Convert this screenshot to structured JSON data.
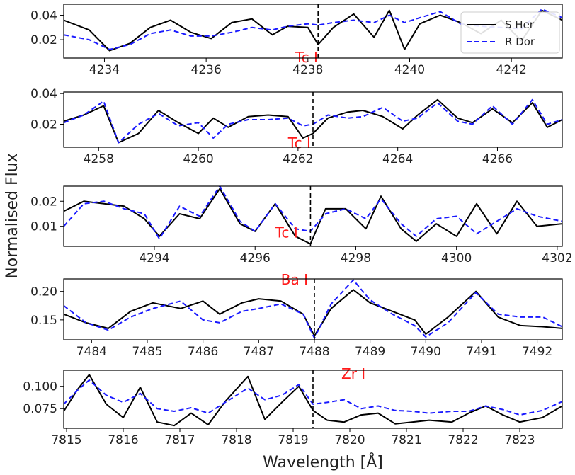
{
  "chart_data": [
    {
      "type": "line",
      "xlim": [
        4233.2,
        4243.0
      ],
      "ylim": [
        0.005,
        0.049
      ],
      "xticks": [
        "4234",
        "4236",
        "4238",
        "4240",
        "4242"
      ],
      "yticks": [
        "0.02",
        "0.04"
      ],
      "marker_x": 4238.2,
      "annotation": {
        "text": "Tc I",
        "x": 4237.75,
        "y": 0.0015
      },
      "legend": {
        "position": "top-right",
        "entries": [
          "S Her",
          "R Dor"
        ]
      },
      "series": [
        {
          "name": "S Her",
          "x": [
            4233.2,
            4233.7,
            4234.1,
            4234.5,
            4234.9,
            4235.3,
            4235.7,
            4236.1,
            4236.5,
            4236.9,
            4237.3,
            4237.6,
            4238.0,
            4238.2,
            4238.5,
            4238.9,
            4239.3,
            4239.6,
            4239.9,
            4240.2,
            4240.6,
            4241.0,
            4241.4,
            4241.8,
            4242.2,
            4242.6,
            4243.0
          ],
          "y": [
            0.036,
            0.028,
            0.011,
            0.017,
            0.03,
            0.036,
            0.026,
            0.021,
            0.034,
            0.037,
            0.024,
            0.031,
            0.03,
            0.016,
            0.03,
            0.041,
            0.022,
            0.044,
            0.012,
            0.033,
            0.04,
            0.034,
            0.025,
            0.036,
            0.019,
            0.044,
            0.036
          ]
        },
        {
          "name": "R Dor",
          "x": [
            4233.2,
            4233.7,
            4234.1,
            4234.5,
            4234.9,
            4235.3,
            4235.7,
            4236.1,
            4236.5,
            4236.9,
            4237.3,
            4237.6,
            4238.0,
            4238.2,
            4238.5,
            4238.9,
            4239.3,
            4239.6,
            4239.9,
            4240.2,
            4240.6,
            4241.0,
            4241.4,
            4241.8,
            4242.2,
            4242.6,
            4243.0
          ],
          "y": [
            0.024,
            0.02,
            0.012,
            0.016,
            0.025,
            0.028,
            0.023,
            0.023,
            0.026,
            0.03,
            0.028,
            0.031,
            0.033,
            0.032,
            0.034,
            0.036,
            0.034,
            0.04,
            0.034,
            0.038,
            0.043,
            0.033,
            0.031,
            0.03,
            0.029,
            0.045,
            0.038
          ]
        }
      ]
    },
    {
      "type": "line",
      "xlim": [
        4257.3,
        4267.3
      ],
      "ylim": [
        0.005,
        0.041
      ],
      "xticks": [
        "4258",
        "4260",
        "4262",
        "4264",
        "4266"
      ],
      "yticks": [
        "0.02",
        "0.04"
      ],
      "marker_x": 4262.3,
      "annotation": {
        "text": "Tc I",
        "x": 4261.8,
        "y": 0.0045
      },
      "series": [
        {
          "name": "S Her",
          "x": [
            4257.3,
            4257.7,
            4258.1,
            4258.4,
            4258.8,
            4259.2,
            4259.6,
            4260.0,
            4260.3,
            4260.6,
            4261.0,
            4261.4,
            4261.8,
            4262.1,
            4262.3,
            4262.6,
            4263.0,
            4263.3,
            4263.7,
            4264.1,
            4264.4,
            4264.8,
            4265.2,
            4265.5,
            4265.9,
            4266.3,
            4266.7,
            4267.0,
            4267.3
          ],
          "y": [
            0.022,
            0.026,
            0.032,
            0.008,
            0.014,
            0.029,
            0.021,
            0.014,
            0.024,
            0.018,
            0.025,
            0.026,
            0.025,
            0.011,
            0.014,
            0.024,
            0.028,
            0.029,
            0.025,
            0.017,
            0.026,
            0.036,
            0.024,
            0.021,
            0.03,
            0.021,
            0.034,
            0.018,
            0.023
          ]
        },
        {
          "name": "R Dor",
          "x": [
            4257.3,
            4257.7,
            4258.1,
            4258.4,
            4258.8,
            4259.2,
            4259.6,
            4260.0,
            4260.3,
            4260.6,
            4261.0,
            4261.4,
            4261.8,
            4262.1,
            4262.3,
            4262.6,
            4263.0,
            4263.3,
            4263.7,
            4264.1,
            4264.4,
            4264.8,
            4265.2,
            4265.5,
            4265.9,
            4266.3,
            4266.7,
            4267.0,
            4267.3
          ],
          "y": [
            0.021,
            0.026,
            0.035,
            0.008,
            0.02,
            0.027,
            0.019,
            0.021,
            0.011,
            0.02,
            0.023,
            0.023,
            0.024,
            0.019,
            0.02,
            0.026,
            0.024,
            0.025,
            0.031,
            0.022,
            0.024,
            0.034,
            0.022,
            0.02,
            0.032,
            0.02,
            0.036,
            0.02,
            0.023
          ]
        }
      ]
    },
    {
      "type": "line",
      "xlim": [
        4292.2,
        4302.1
      ],
      "ylim": [
        0.002,
        0.026
      ],
      "xticks": [
        "4294",
        "4296",
        "4298",
        "4300",
        "4302"
      ],
      "yticks": [
        "0.01",
        "0.02"
      ],
      "marker_x": 4297.1,
      "annotation": {
        "text": "Tc I",
        "x": 4296.4,
        "y": 0.0055
      },
      "series": [
        {
          "name": "S Her",
          "x": [
            4292.2,
            4292.6,
            4293.0,
            4293.4,
            4293.8,
            4294.1,
            4294.5,
            4294.9,
            4295.3,
            4295.7,
            4296.0,
            4296.4,
            4296.8,
            4297.1,
            4297.4,
            4297.8,
            4298.2,
            4298.5,
            4298.9,
            4299.2,
            4299.6,
            4300.0,
            4300.4,
            4300.8,
            4301.2,
            4301.6,
            4302.1
          ],
          "y": [
            0.016,
            0.02,
            0.019,
            0.018,
            0.013,
            0.006,
            0.015,
            0.013,
            0.025,
            0.011,
            0.008,
            0.019,
            0.006,
            0.003,
            0.017,
            0.017,
            0.009,
            0.022,
            0.009,
            0.004,
            0.011,
            0.006,
            0.019,
            0.007,
            0.02,
            0.01,
            0.011
          ]
        },
        {
          "name": "R Dor",
          "x": [
            4292.2,
            4292.6,
            4293.0,
            4293.4,
            4293.8,
            4294.1,
            4294.5,
            4294.9,
            4295.3,
            4295.7,
            4296.0,
            4296.4,
            4296.8,
            4297.1,
            4297.4,
            4297.8,
            4298.2,
            4298.5,
            4298.9,
            4299.2,
            4299.6,
            4300.0,
            4300.4,
            4300.8,
            4301.2,
            4301.6,
            4302.1
          ],
          "y": [
            0.01,
            0.019,
            0.02,
            0.017,
            0.015,
            0.005,
            0.018,
            0.014,
            0.026,
            0.012,
            0.008,
            0.019,
            0.009,
            0.008,
            0.015,
            0.017,
            0.013,
            0.021,
            0.011,
            0.006,
            0.013,
            0.014,
            0.007,
            0.012,
            0.017,
            0.014,
            0.012
          ]
        }
      ]
    },
    {
      "type": "line",
      "xlim": [
        7483.5,
        7492.45
      ],
      "ylim": [
        0.115,
        0.222
      ],
      "xticks": [
        "7484",
        "7485",
        "7486",
        "7487",
        "7488",
        "7489",
        "7490",
        "7491",
        "7492"
      ],
      "yticks": [
        "0.15",
        "0.20"
      ],
      "marker_x": 7488.0,
      "annotation": {
        "text": "Ba I",
        "x": 7487.4,
        "y": 0.212
      },
      "series": [
        {
          "name": "S Her",
          "x": [
            7483.5,
            7483.9,
            7484.3,
            7484.7,
            7485.1,
            7485.6,
            7486.0,
            7486.3,
            7486.7,
            7487.0,
            7487.4,
            7487.8,
            7488.0,
            7488.3,
            7488.7,
            7489.0,
            7489.4,
            7489.8,
            7490.0,
            7490.4,
            7490.9,
            7491.3,
            7491.7,
            7492.1,
            7492.45
          ],
          "y": [
            0.16,
            0.145,
            0.135,
            0.165,
            0.18,
            0.17,
            0.183,
            0.16,
            0.18,
            0.187,
            0.183,
            0.16,
            0.122,
            0.17,
            0.203,
            0.18,
            0.165,
            0.15,
            0.125,
            0.155,
            0.2,
            0.155,
            0.14,
            0.138,
            0.135
          ]
        },
        {
          "name": "R Dor",
          "x": [
            7483.5,
            7483.9,
            7484.3,
            7484.7,
            7485.1,
            7485.6,
            7486.0,
            7486.3,
            7486.7,
            7487.0,
            7487.4,
            7487.8,
            7488.0,
            7488.3,
            7488.7,
            7489.0,
            7489.4,
            7489.8,
            7490.0,
            7490.4,
            7490.9,
            7491.3,
            7491.7,
            7492.1,
            7492.45
          ],
          "y": [
            0.175,
            0.145,
            0.132,
            0.155,
            0.17,
            0.183,
            0.15,
            0.145,
            0.165,
            0.17,
            0.178,
            0.16,
            0.118,
            0.178,
            0.22,
            0.185,
            0.16,
            0.14,
            0.12,
            0.145,
            0.198,
            0.16,
            0.155,
            0.155,
            0.138
          ]
        }
      ]
    },
    {
      "type": "line",
      "xlim": [
        7814.95,
        7823.75
      ],
      "ylim": [
        0.053,
        0.118
      ],
      "xticks": [
        "7815",
        "7816",
        "7817",
        "7818",
        "7819",
        "7820",
        "7821",
        "7822",
        "7823"
      ],
      "yticks": [
        "0.075",
        "0.100"
      ],
      "marker_x": 7819.35,
      "annotation": {
        "text": "Zr I",
        "x": 7819.85,
        "y": 0.1085
      },
      "series": [
        {
          "name": "S Her",
          "x": [
            7814.95,
            7815.2,
            7815.4,
            7815.7,
            7816.0,
            7816.3,
            7816.6,
            7816.9,
            7817.2,
            7817.5,
            7817.8,
            7818.2,
            7818.5,
            7818.8,
            7819.1,
            7819.35,
            7819.6,
            7819.9,
            7820.2,
            7820.5,
            7820.8,
            7821.1,
            7821.4,
            7821.8,
            7822.1,
            7822.4,
            7822.7,
            7823.0,
            7823.4,
            7823.75
          ],
          "y": [
            0.072,
            0.097,
            0.113,
            0.08,
            0.065,
            0.099,
            0.06,
            0.056,
            0.07,
            0.057,
            0.083,
            0.111,
            0.063,
            0.082,
            0.1,
            0.073,
            0.062,
            0.06,
            0.068,
            0.07,
            0.058,
            0.06,
            0.062,
            0.06,
            0.07,
            0.078,
            0.068,
            0.06,
            0.065,
            0.078
          ]
        },
        {
          "name": "R Dor",
          "x": [
            7814.95,
            7815.2,
            7815.4,
            7815.7,
            7816.0,
            7816.3,
            7816.6,
            7816.9,
            7817.2,
            7817.5,
            7817.8,
            7818.2,
            7818.5,
            7818.8,
            7819.1,
            7819.35,
            7819.6,
            7819.9,
            7820.2,
            7820.5,
            7820.8,
            7821.1,
            7821.4,
            7821.8,
            7822.1,
            7822.4,
            7822.7,
            7823.0,
            7823.4,
            7823.75
          ],
          "y": [
            0.08,
            0.096,
            0.107,
            0.09,
            0.082,
            0.092,
            0.075,
            0.072,
            0.076,
            0.07,
            0.082,
            0.098,
            0.085,
            0.09,
            0.102,
            0.08,
            0.082,
            0.085,
            0.075,
            0.078,
            0.073,
            0.072,
            0.07,
            0.072,
            0.072,
            0.078,
            0.074,
            0.068,
            0.073,
            0.083
          ]
        }
      ]
    }
  ],
  "labels": {
    "ylabel": "Normalised Flux",
    "xlabel": "Wavelength [Å]"
  },
  "styles": {
    "s_her_color": "#000000",
    "r_dor_color": "#1a1aff",
    "annotation_color": "#ff1a1a",
    "marker_color": "#000000"
  }
}
